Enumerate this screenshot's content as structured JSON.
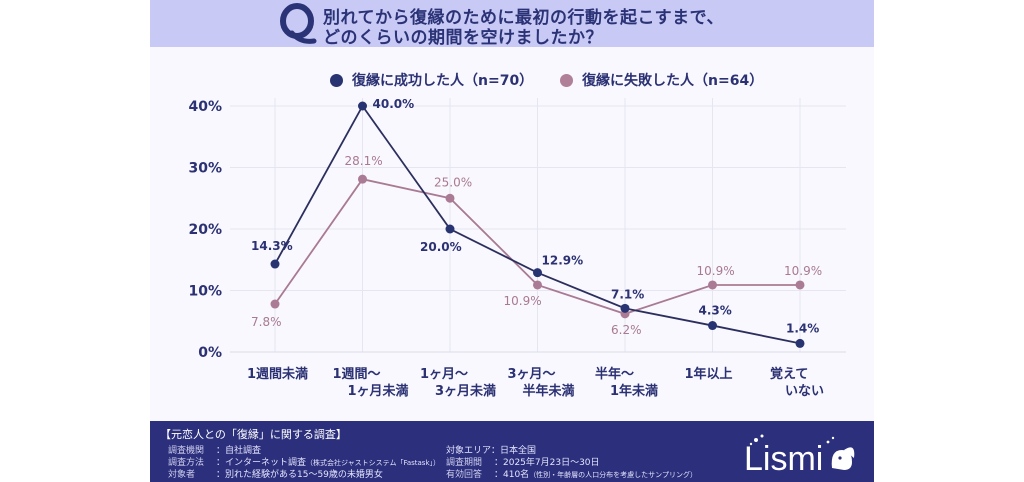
{
  "header": {
    "q_label": "Q",
    "title_line1": "別れてから復縁のために最初の行動を起こすまで、",
    "title_line2": "どのくらいの期間を空けましたか？"
  },
  "colors": {
    "header_bg": "#c9c9f5",
    "navy": "#2b3173",
    "mauve": "#a97a93",
    "footer_bg": "#2b2f7c"
  },
  "chart_data": {
    "type": "line",
    "title": "別れてから復縁のために最初の行動を起こすまで、どのくらいの期間を空けましたか？",
    "xlabel": "",
    "ylabel": "",
    "ylim": [
      0,
      40
    ],
    "yticks": [
      0,
      10,
      20,
      30,
      40
    ],
    "ytick_labels": [
      "0%",
      "10%",
      "20%",
      "30%",
      "40%"
    ],
    "grid": true,
    "legend_position": "top-center",
    "categories": [
      [
        "1週間未満"
      ],
      [
        "1週間〜",
        "1ヶ月未満"
      ],
      [
        "1ヶ月〜",
        "3ヶ月未満"
      ],
      [
        "3ヶ月〜",
        "半年未満"
      ],
      [
        "半年〜",
        "1年未満"
      ],
      [
        "1年以上"
      ],
      [
        "覚えて",
        "いない"
      ]
    ],
    "series": [
      {
        "name": "復縁に成功した人（n=70）",
        "color": "#2b3173",
        "values": [
          14.3,
          40.0,
          20.0,
          12.9,
          7.1,
          4.3,
          1.4
        ],
        "labels": [
          "14.3%",
          "40.0%",
          "20.0%",
          "12.9%",
          "7.1%",
          "4.3%",
          "1.4%"
        ]
      },
      {
        "name": "復縁に失敗した人（n=64）",
        "color": "#a97a93",
        "values": [
          7.8,
          28.1,
          25.0,
          10.9,
          6.2,
          10.9,
          10.9
        ],
        "labels": [
          "7.8%",
          "28.1%",
          "25.0%",
          "10.9%",
          "6.2%",
          "10.9%",
          "10.9%"
        ]
      }
    ]
  },
  "footer": {
    "title": "【元恋人との「復縁」に関する調査】",
    "left": [
      {
        "label": "調査機関",
        "value": "：自社調査",
        "note": ""
      },
      {
        "label": "調査方法",
        "value": "：インターネット調査",
        "note": "（株式会社ジャストシステム「Fastask」）"
      },
      {
        "label": "対象者",
        "value": "：別れた経験がある15〜59歳の未婚男女",
        "note": ""
      }
    ],
    "right": [
      {
        "label": "対象エリア",
        "value": "：日本全国",
        "note": ""
      },
      {
        "label": "調査期間",
        "value": "：2025年7月23日〜30日",
        "note": ""
      },
      {
        "label": "有効回答",
        "value": "：410名",
        "note": "（性別・年齢層の人口分布を考慮したサンプリング）"
      }
    ],
    "logo_text": "Lismi"
  }
}
